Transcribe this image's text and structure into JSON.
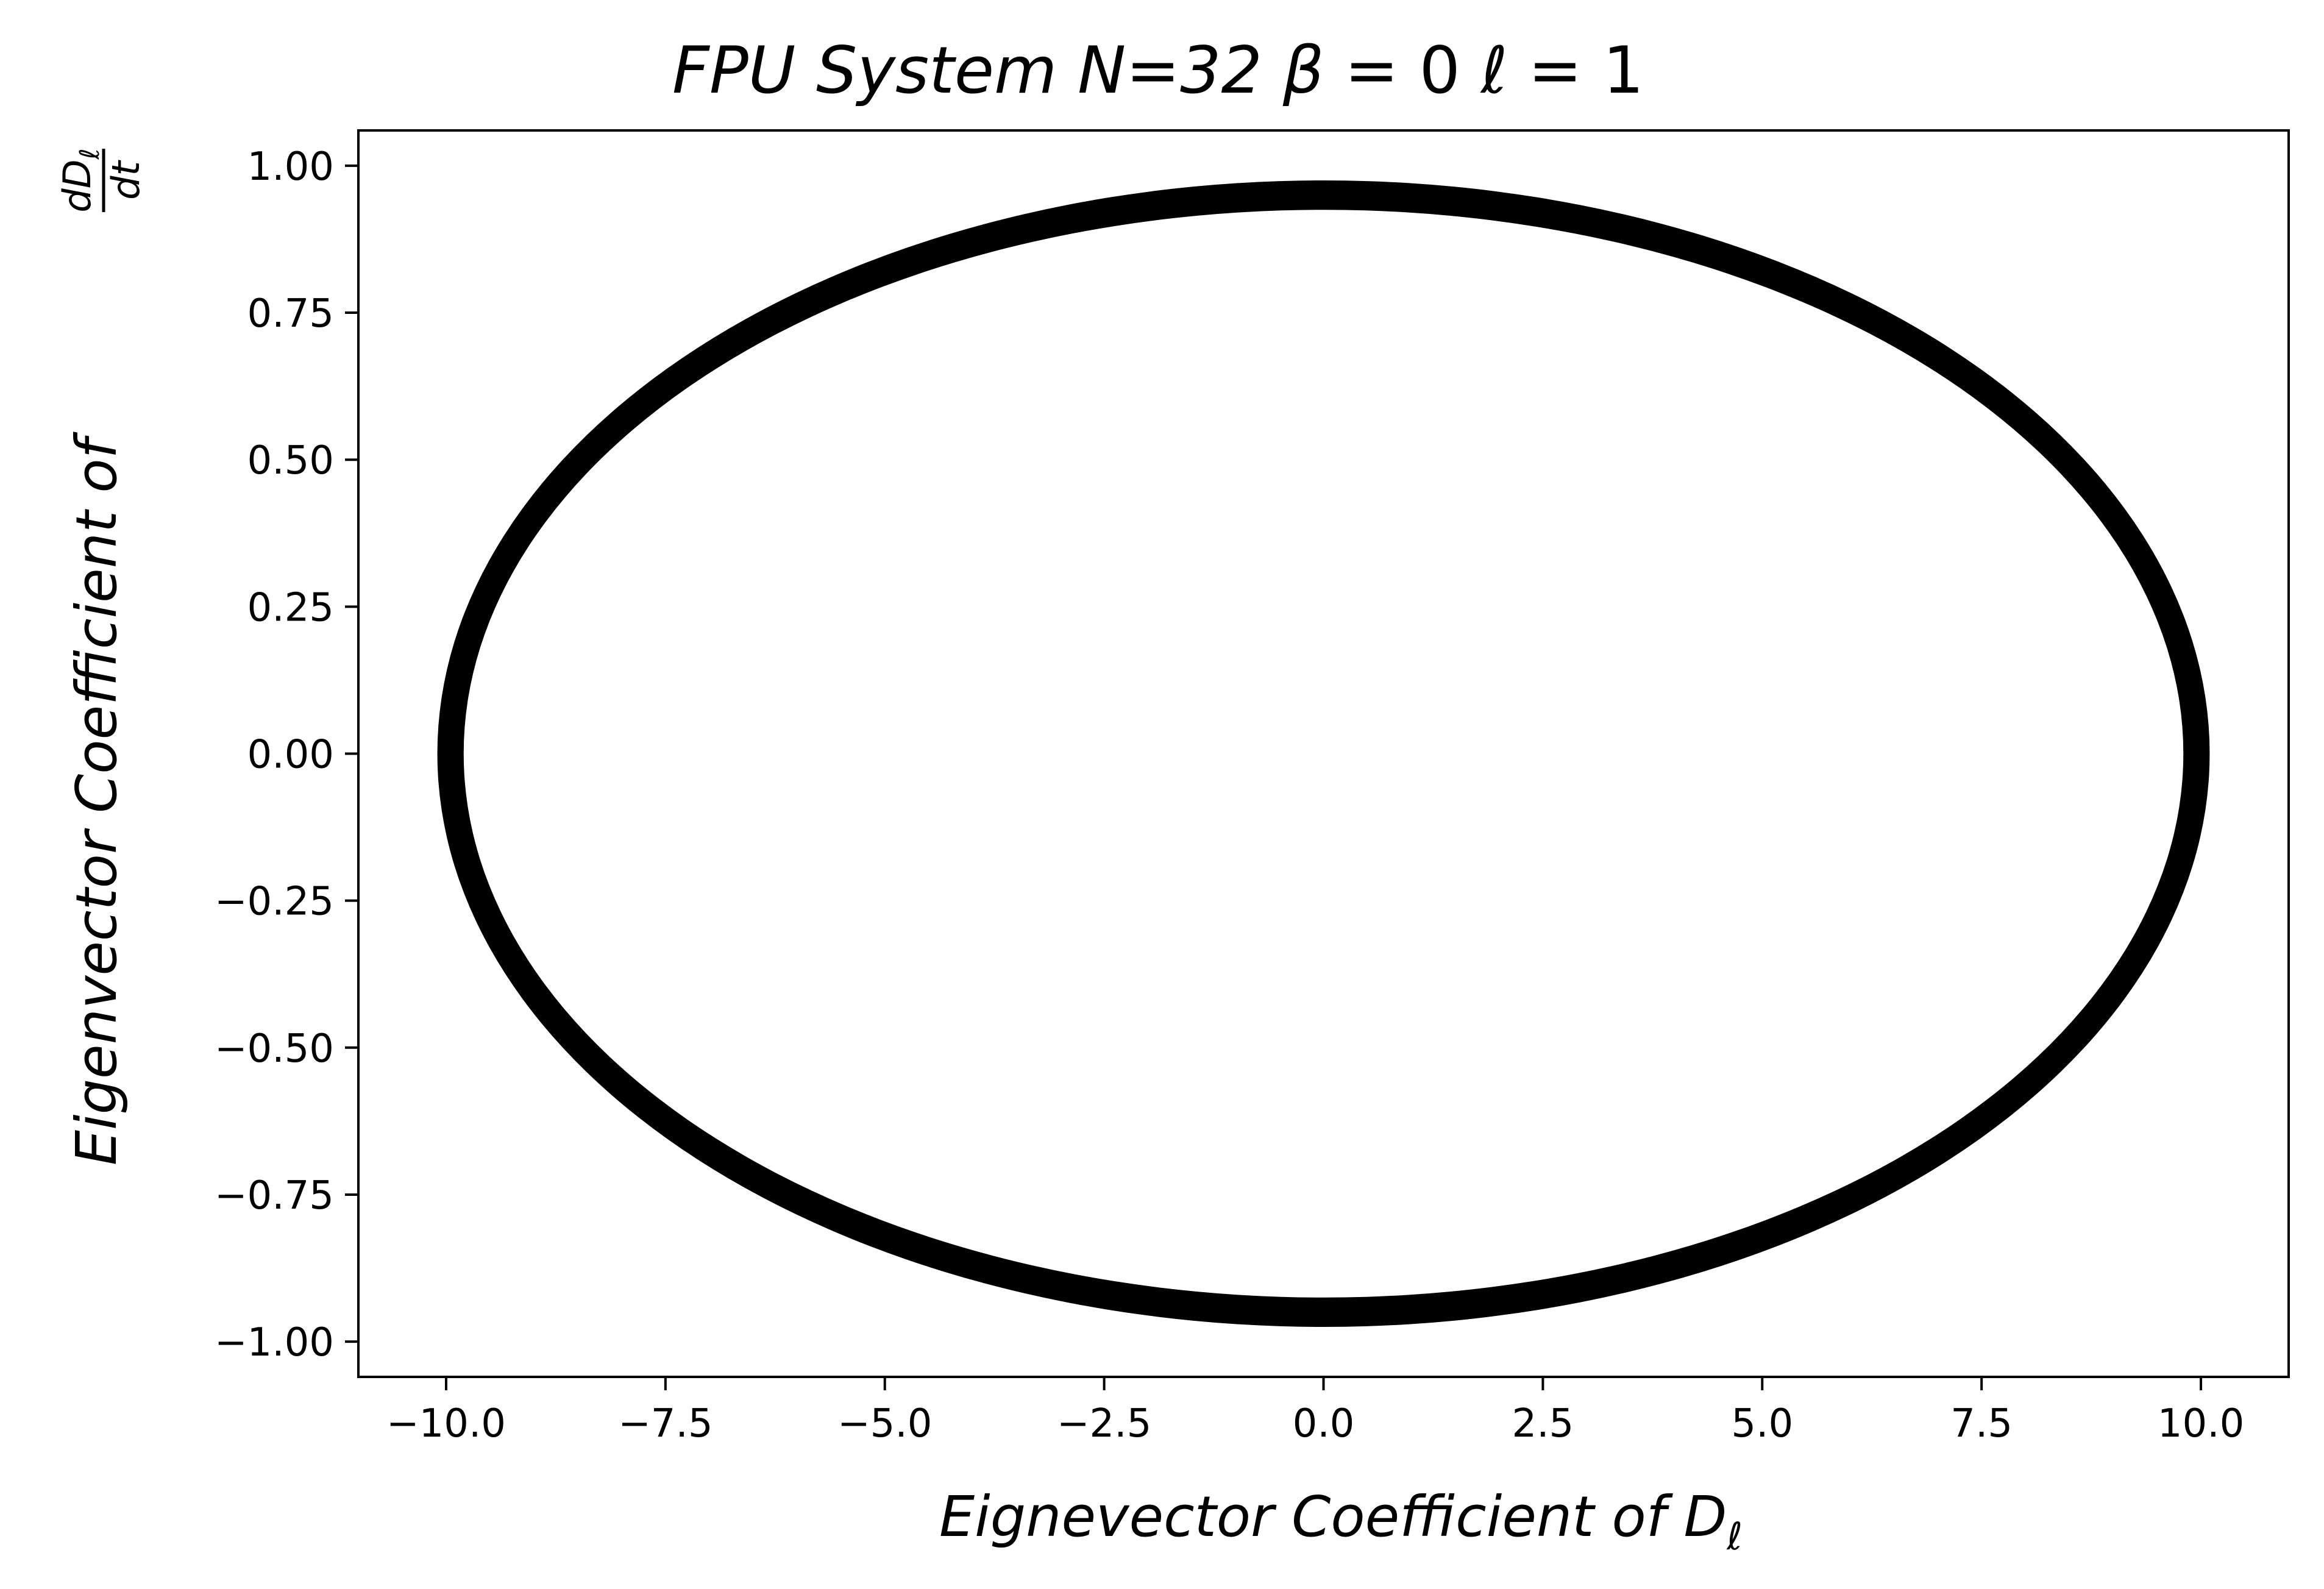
{
  "chart_data": {
    "type": "line",
    "title_parts": {
      "main": "FPU System N=32 ",
      "beta_symbol": "β",
      "beta_value": " = 0 ",
      "ell_symbol": "ℓ",
      "ell_value": " = 1"
    },
    "xlabel_parts": {
      "main": "Eignevector Coefficient of D",
      "subscript": "ℓ"
    },
    "ylabel_parts": {
      "main": "Eigenvector Coefficient of ",
      "frac_num": "dD",
      "frac_num_sub": "ℓ",
      "frac_den": "dt"
    },
    "xlim": [
      -11.0,
      11.0
    ],
    "ylim": [
      -1.06,
      1.06
    ],
    "x_ticks": [
      -10.0,
      -7.5,
      -5.0,
      -2.5,
      0.0,
      2.5,
      5.0,
      7.5,
      10.0
    ],
    "x_tick_labels": [
      "−10.0",
      "−7.5",
      "−5.0",
      "−2.5",
      "0.0",
      "2.5",
      "5.0",
      "7.5",
      "10.0"
    ],
    "y_ticks": [
      1.0,
      0.75,
      0.5,
      0.25,
      0.0,
      -0.25,
      -0.5,
      -0.75,
      -1.0
    ],
    "y_tick_labels": [
      "1.00",
      "0.75",
      "0.50",
      "0.25",
      "0.00",
      "−0.25",
      "−0.50",
      "−0.75",
      "−1.00"
    ],
    "grid": false,
    "series": [
      {
        "shape": "ellipse",
        "center": [
          0.0,
          0.0
        ],
        "x_radius_outer": 10.1,
        "x_radius_inner": 9.8,
        "y_radius_outer": 0.975,
        "y_radius_inner": 0.925,
        "color": "#000000"
      }
    ]
  }
}
